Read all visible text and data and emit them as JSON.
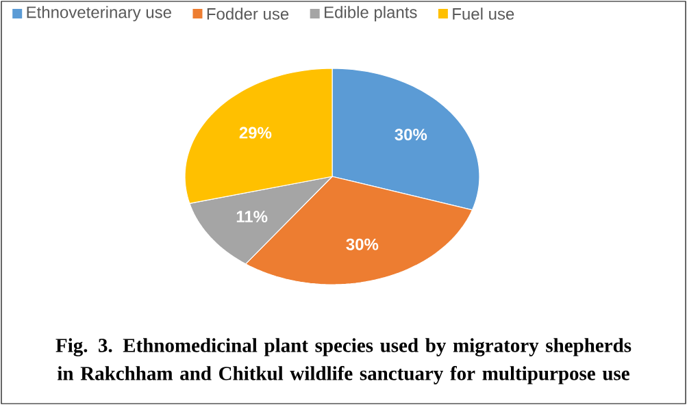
{
  "chart_data": {
    "type": "pie",
    "title": "Fig. 3. Ethnomedicinal plant species used by migratory shepherds in Rakchham and Chitkul wildlife sanctuary for multipurpose use",
    "categories": [
      "Ethnoveterinary use",
      "Fodder use",
      "Edible plants",
      "Fuel use"
    ],
    "values": [
      30,
      30,
      11,
      29
    ],
    "value_labels": [
      "30%",
      "30%",
      "11%",
      "29%"
    ],
    "colors": [
      "#5b9bd5",
      "#ed7d31",
      "#a5a5a5",
      "#ffc000"
    ],
    "legend": "top"
  }
}
